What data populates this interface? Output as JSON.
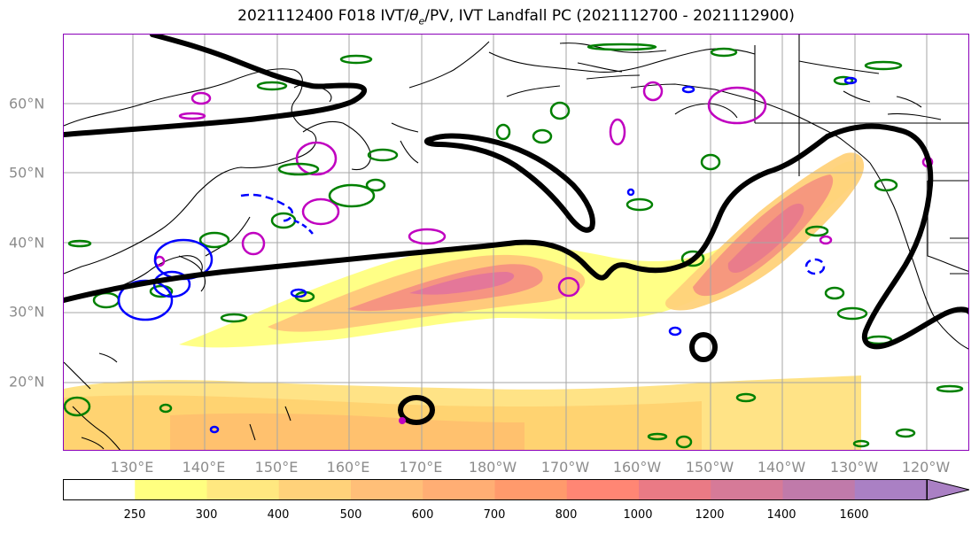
{
  "title": {
    "prefix": "2021112400 F018 IVT/",
    "theta": "θ",
    "theta_sub": "e",
    "suffix": "/PV, IVT Landfall PC (2021112700 - 2021112900)"
  },
  "map": {
    "projection_view": "North Pacific",
    "lat_labels": [
      "60°N",
      "50°N",
      "40°N",
      "30°N",
      "20°N"
    ],
    "lon_labels": [
      "130°E",
      "140°E",
      "150°E",
      "160°E",
      "170°E",
      "180°W",
      "170°W",
      "160°W",
      "150°W",
      "140°W",
      "130°W",
      "120°W"
    ],
    "colors": {
      "land_outline": "#000000",
      "grid": "#a0a0a0",
      "pv_positive": "#008000",
      "pv_negative": "#0000ff",
      "theta_e": "#c000c0",
      "landfall_pc": "#000000",
      "frame": "#8a00b8"
    }
  },
  "colorbar": {
    "ticks": [
      "250",
      "300",
      "400",
      "500",
      "600",
      "700",
      "800",
      "1000",
      "1200",
      "1400",
      "1600"
    ],
    "colors": [
      "#ffffff",
      "#ffff80",
      "#ffe880",
      "#ffd27a",
      "#ffbf78",
      "#ffae74",
      "#ff9a6c",
      "#ff8674",
      "#ea7a85",
      "#d67a98",
      "#c07aaa",
      "#aa80c4"
    ],
    "extend": "max"
  }
}
